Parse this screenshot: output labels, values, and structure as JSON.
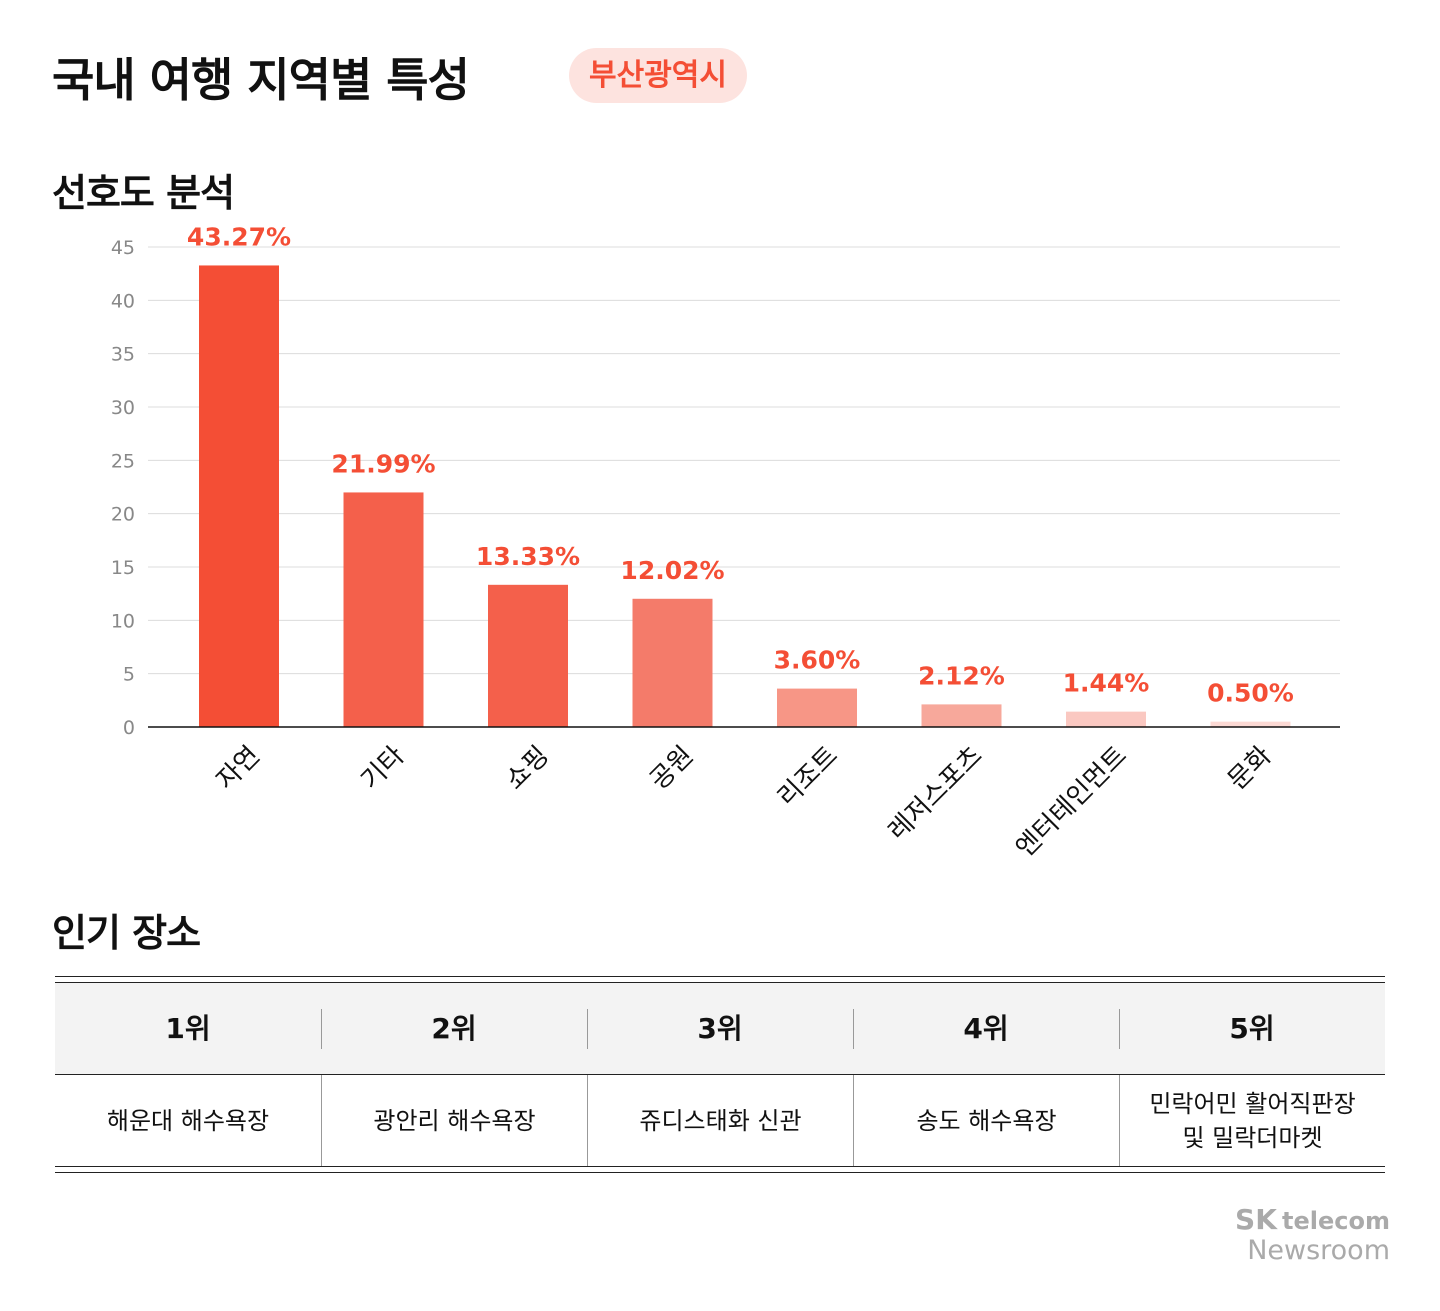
{
  "header": {
    "title": "국내 여행 지역별 특성",
    "region_badge": "부산광역시"
  },
  "sections": {
    "preference": "선호도 분석",
    "popular": "인기 장소"
  },
  "chart_data": {
    "type": "bar",
    "categories": [
      "자연",
      "기타",
      "쇼핑",
      "공원",
      "리조트",
      "레저스포츠",
      "엔터테인먼트",
      "문화"
    ],
    "values": [
      43.27,
      21.99,
      13.33,
      12.02,
      3.6,
      2.12,
      1.44,
      0.5
    ],
    "data_labels": [
      "43.27%",
      "21.99%",
      "13.33%",
      "12.02%",
      "3.60%",
      "2.12%",
      "1.44%",
      "0.50%"
    ],
    "ylim": [
      0,
      45
    ],
    "yticks": [
      0,
      5,
      10,
      15,
      20,
      25,
      30,
      35,
      40,
      45
    ],
    "grid": true,
    "bar_colors": [
      "#f44e35",
      "#f4604b",
      "#f4604b",
      "#f47b6a",
      "#f79686",
      "#f7a89b",
      "#fac8c1",
      "#fcd9d4"
    ],
    "label_color": "#f44e35"
  },
  "table": {
    "headers": [
      "1위",
      "2위",
      "3위",
      "4위",
      "5위"
    ],
    "cells": [
      "해운대 해수욕장",
      "광안리 해수욕장",
      "쥬디스태화 신관",
      "송도 해수욕장",
      "민락어민 활어직판장\n및 밀락더마켓"
    ]
  },
  "logo": {
    "brand": "SK",
    "sub": "telecom",
    "line2": "Newsroom"
  }
}
